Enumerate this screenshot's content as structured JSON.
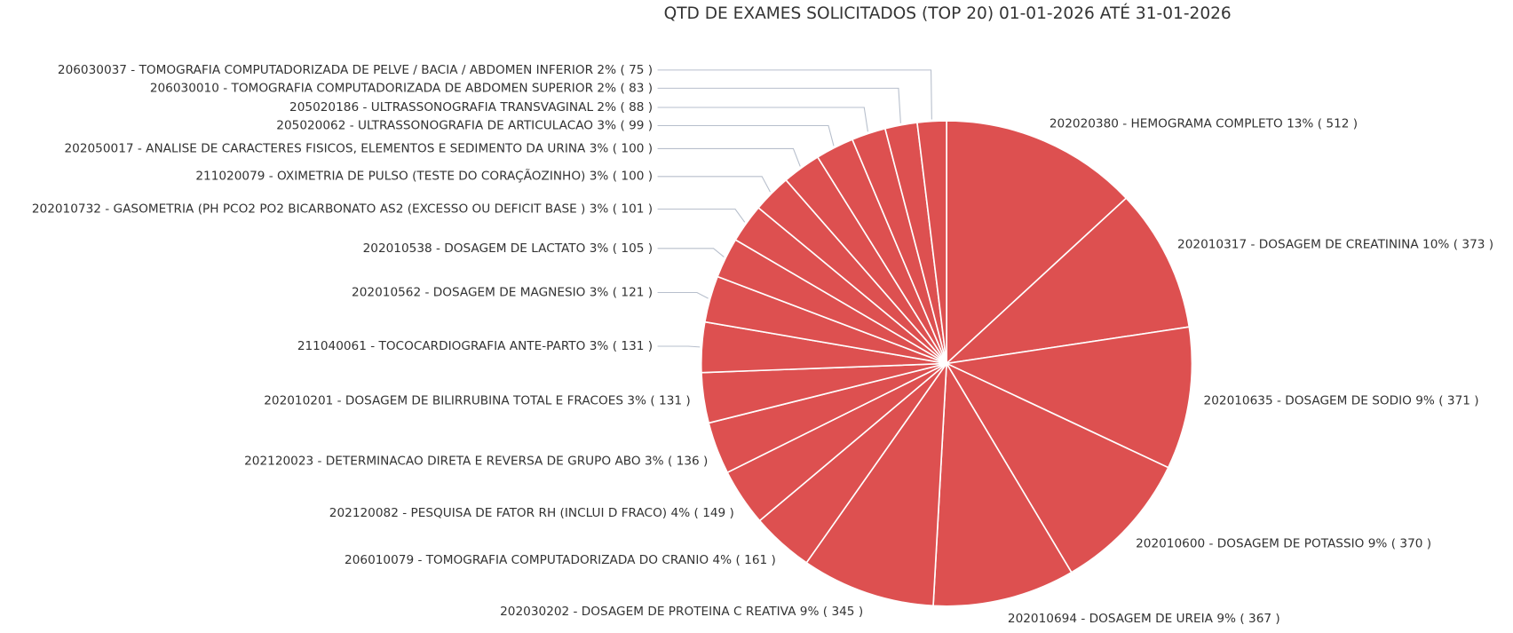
{
  "chart_data": {
    "type": "pie",
    "title": "QTD DE EXAMES SOLICITADOS (TOP 20) 01-01-2026 ATÉ 31-01-2026",
    "color": "#dd5050",
    "categories": [
      "202020380 - HEMOGRAMA COMPLETO",
      "202010317 - DOSAGEM DE CREATININA",
      "202010635 - DOSAGEM DE SODIO",
      "202010600 - DOSAGEM DE POTASSIO",
      "202010694 - DOSAGEM DE UREIA",
      "202030202 - DOSAGEM DE PROTEINA C REATIVA",
      "206010079 - TOMOGRAFIA COMPUTADORIZADA DO CRANIO",
      "202120082 - PESQUISA DE FATOR RH (INCLUI D FRACO)",
      "202120023 - DETERMINACAO DIRETA E REVERSA DE GRUPO ABO",
      "202010201 - DOSAGEM DE BILIRRUBINA TOTAL E FRACOES",
      "211040061 - TOCOCARDIOGRAFIA ANTE-PARTO",
      "202010562 - DOSAGEM DE MAGNESIO",
      "202010538 - DOSAGEM DE LACTATO",
      "202010732 - GASOMETRIA (PH PCO2 PO2 BICARBONATO AS2 (EXCESSO OU DEFICIT BASE )",
      "211020079 - OXIMETRIA DE PULSO (TESTE DO CORAÇÃOZINHO)",
      "202050017 - ANALISE DE CARACTERES FISICOS, ELEMENTOS E SEDIMENTO DA URINA",
      "205020062 - ULTRASSONOGRAFIA DE ARTICULACAO",
      "205020186 - ULTRASSONOGRAFIA TRANSVAGINAL",
      "206030010 - TOMOGRAFIA COMPUTADORIZADA DE ABDOMEN SUPERIOR",
      "206030037 - TOMOGRAFIA COMPUTADORIZADA DE PELVE / BACIA / ABDOMEN INFERIOR"
    ],
    "values": [
      512,
      373,
      371,
      370,
      367,
      345,
      161,
      149,
      136,
      131,
      131,
      121,
      105,
      101,
      100,
      100,
      99,
      88,
      83,
      75
    ],
    "percent_labels": [
      "13%",
      "10%",
      "9%",
      "9%",
      "9%",
      "9%",
      "4%",
      "4%",
      "3%",
      "3%",
      "3%",
      "3%",
      "3%",
      "3%",
      "3%",
      "3%",
      "3%",
      "2%",
      "2%",
      "2%"
    ],
    "value_labels": [
      "( 512 )",
      "( 373 )",
      "( 371 )",
      "( 370 )",
      "( 367 )",
      "( 345 )",
      "( 161 )",
      "( 149 )",
      "( 136 )",
      "( 131 )",
      "( 131 )",
      "( 121 )",
      "( 105 )",
      "( 101 )",
      "( 100 )",
      "( 100 )",
      "( 99 )",
      "( 88 )",
      "( 83 )",
      "( 75 )"
    ]
  }
}
